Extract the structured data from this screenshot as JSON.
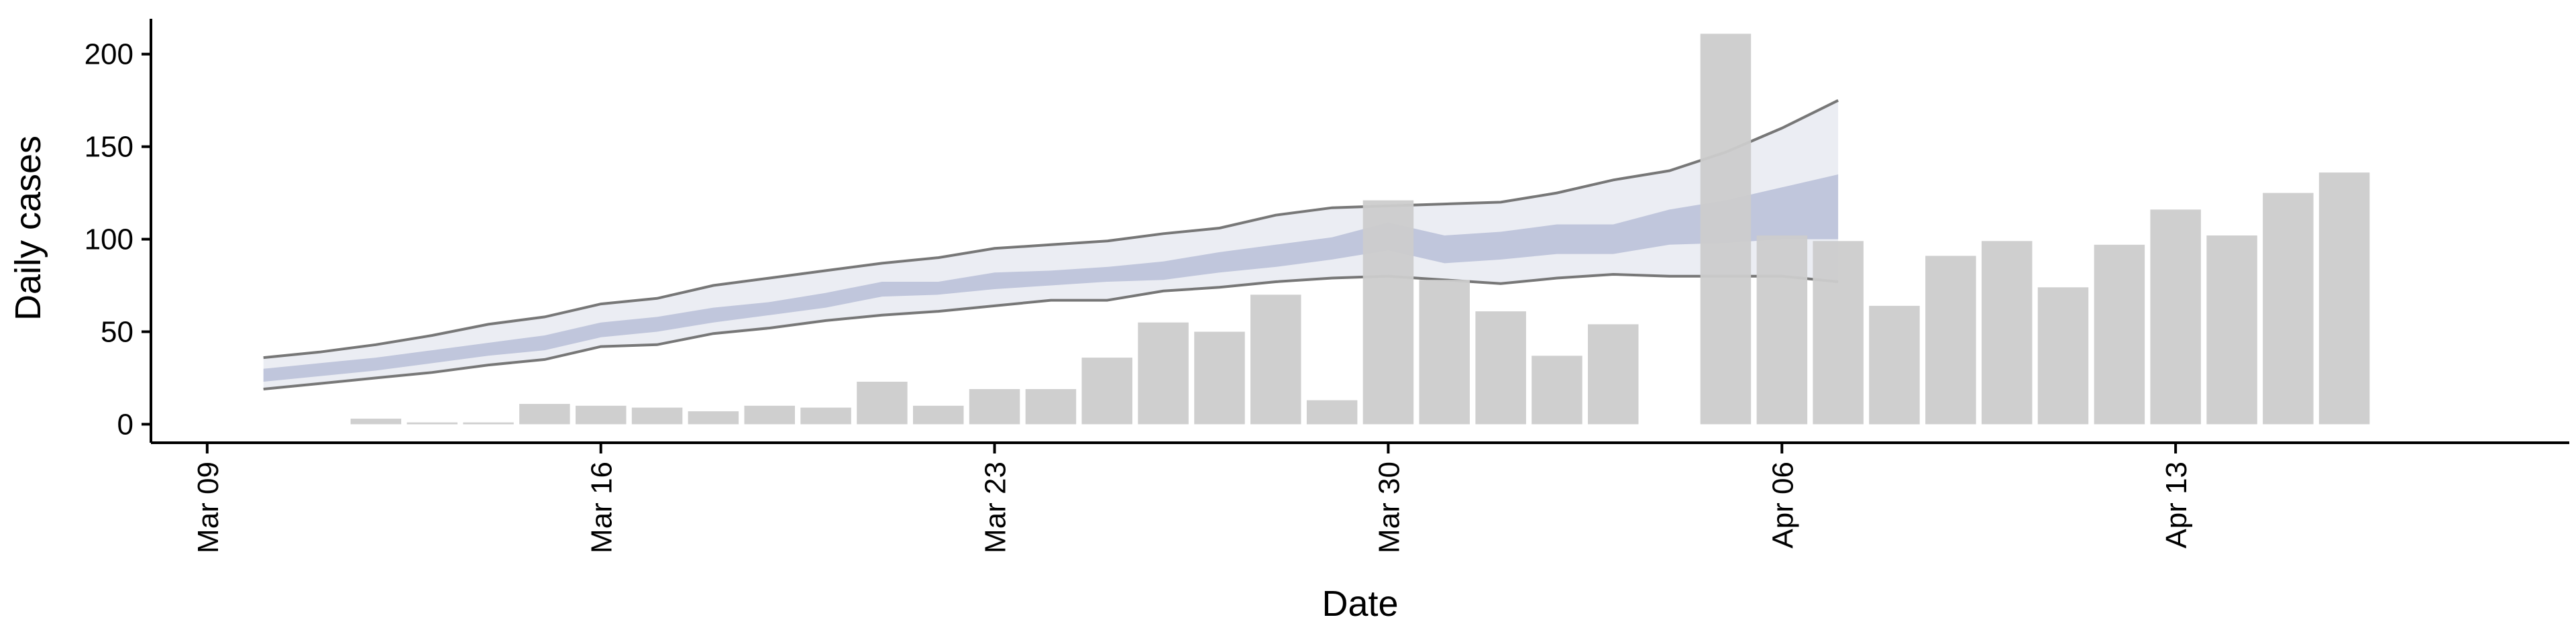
{
  "chart_data": {
    "type": "bar",
    "title": "",
    "xlabel": "Date",
    "ylabel": "Daily cases",
    "x_axis_type": "date",
    "xlim": [
      "2020-03-08",
      "2020-04-20"
    ],
    "ylim": [
      -10,
      222
    ],
    "grid": false,
    "legend": "none",
    "x_ticks": [
      {
        "date": "2020-03-09",
        "label": "Mar 09"
      },
      {
        "date": "2020-03-16",
        "label": "Mar 16"
      },
      {
        "date": "2020-03-23",
        "label": "Mar 23"
      },
      {
        "date": "2020-03-30",
        "label": "Mar 30"
      },
      {
        "date": "2020-04-06",
        "label": "Apr 06"
      },
      {
        "date": "2020-04-13",
        "label": "Apr 13"
      }
    ],
    "y_ticks": [
      0,
      50,
      100,
      150,
      200
    ],
    "colors": {
      "bars": "#cccccc",
      "band_outer": "#c5cadd",
      "band_inner": "#9ca6c8",
      "band_lines": "#777777"
    },
    "bars": {
      "dates": [
        "2020-03-12",
        "2020-03-13",
        "2020-03-14",
        "2020-03-15",
        "2020-03-16",
        "2020-03-17",
        "2020-03-18",
        "2020-03-19",
        "2020-03-20",
        "2020-03-21",
        "2020-03-22",
        "2020-03-23",
        "2020-03-24",
        "2020-03-25",
        "2020-03-26",
        "2020-03-27",
        "2020-03-28",
        "2020-03-29",
        "2020-03-30",
        "2020-03-31",
        "2020-04-01",
        "2020-04-02",
        "2020-04-03",
        "2020-04-05",
        "2020-04-06",
        "2020-04-07",
        "2020-04-08",
        "2020-04-09",
        "2020-04-10",
        "2020-04-11",
        "2020-04-12",
        "2020-04-13",
        "2020-04-14",
        "2020-04-15",
        "2020-04-16"
      ],
      "values": [
        3,
        1,
        1,
        11,
        10,
        9,
        7,
        10,
        9,
        23,
        10,
        19,
        19,
        36,
        55,
        50,
        70,
        13,
        121,
        78,
        61,
        37,
        54,
        211,
        102,
        99,
        64,
        91,
        99,
        74,
        97,
        116,
        102,
        125,
        136
      ]
    },
    "model_band": {
      "dates": [
        "2020-03-10",
        "2020-03-11",
        "2020-03-12",
        "2020-03-13",
        "2020-03-14",
        "2020-03-15",
        "2020-03-16",
        "2020-03-17",
        "2020-03-18",
        "2020-03-19",
        "2020-03-20",
        "2020-03-21",
        "2020-03-22",
        "2020-03-23",
        "2020-03-24",
        "2020-03-25",
        "2020-03-26",
        "2020-03-27",
        "2020-03-28",
        "2020-03-29",
        "2020-03-30",
        "2020-03-31",
        "2020-04-01",
        "2020-04-02",
        "2020-04-03",
        "2020-04-04",
        "2020-04-05",
        "2020-04-06",
        "2020-04-07"
      ],
      "upper": [
        36,
        39,
        43,
        48,
        54,
        58,
        65,
        68,
        75,
        79,
        83,
        87,
        90,
        95,
        97,
        99,
        103,
        106,
        113,
        117,
        118,
        119,
        120,
        125,
        132,
        137,
        147,
        160,
        175
      ],
      "lower": [
        19,
        22,
        25,
        28,
        32,
        35,
        42,
        43,
        49,
        52,
        56,
        59,
        61,
        64,
        67,
        67,
        72,
        74,
        77,
        79,
        80,
        78,
        76,
        79,
        81,
        80,
        80,
        80,
        77
      ],
      "inner_upper": [
        30,
        33,
        36,
        40,
        44,
        48,
        55,
        58,
        63,
        66,
        71,
        77,
        77,
        82,
        83,
        85,
        88,
        93,
        97,
        101,
        109,
        102,
        104,
        108,
        108,
        116,
        121,
        128,
        135
      ],
      "inner_lower": [
        23,
        26,
        29,
        33,
        37,
        40,
        47,
        50,
        55,
        59,
        63,
        69,
        70,
        73,
        75,
        77,
        78,
        82,
        85,
        89,
        94,
        87,
        89,
        92,
        92,
        97,
        98,
        100,
        100
      ]
    }
  }
}
